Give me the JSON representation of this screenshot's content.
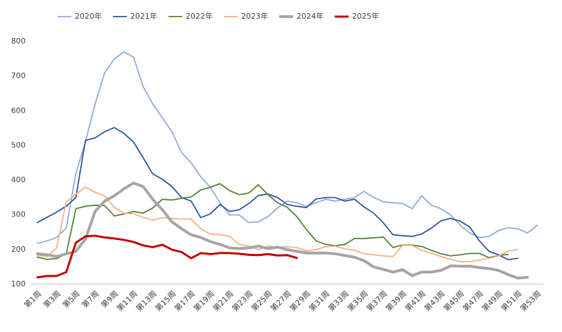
{
  "chart_data": {
    "type": "line",
    "categories": [
      "第1周",
      null,
      "第3周",
      null,
      "第5周",
      null,
      "第7周",
      null,
      "第9周",
      null,
      "第11周",
      null,
      "第13周",
      null,
      "第15周",
      null,
      "第17周",
      null,
      "第19周",
      null,
      "第21周",
      null,
      "第23周",
      null,
      "第25周",
      null,
      "第27周",
      null,
      "第29周",
      null,
      "第31周",
      null,
      "第33周",
      null,
      "第35周",
      null,
      "第37周",
      null,
      "第39周",
      null,
      "第41周",
      null,
      "第43周",
      null,
      "第45周",
      null,
      "第47周",
      null,
      "第49周",
      null,
      "第51周",
      null,
      "第53周"
    ],
    "ylim": [
      100,
      800
    ],
    "yticks": [
      100,
      200,
      300,
      400,
      500,
      600,
      700,
      800
    ],
    "series": [
      {
        "name": "2020年",
        "color": "#8faadc",
        "line_width": 1.8,
        "values": [
          218,
          225,
          235,
          262,
          420,
          510,
          620,
          710,
          750,
          770,
          755,
          670,
          620,
          580,
          540,
          480,
          450,
          410,
          380,
          335,
          300,
          300,
          278,
          280,
          295,
          320,
          340,
          335,
          325,
          335,
          345,
          340,
          345,
          350,
          368,
          350,
          338,
          335,
          333,
          318,
          355,
          328,
          318,
          300,
          270,
          248,
          235,
          238,
          255,
          263,
          260,
          248,
          270
        ]
      },
      {
        "name": "2021年",
        "color": "#2f5597",
        "line_width": 1.8,
        "values": [
          278,
          293,
          308,
          325,
          350,
          515,
          522,
          540,
          552,
          535,
          510,
          465,
          418,
          403,
          382,
          350,
          340,
          292,
          303,
          330,
          310,
          315,
          333,
          356,
          360,
          350,
          330,
          325,
          321,
          346,
          350,
          350,
          340,
          345,
          323,
          305,
          277,
          243,
          240,
          238,
          245,
          262,
          283,
          290,
          282,
          265,
          225,
          195,
          185,
          171,
          175,
          null,
          null
        ]
      },
      {
        "name": "2022年",
        "color": "#548235",
        "line_width": 1.8,
        "values": [
          178,
          172,
          174,
          188,
          318,
          325,
          328,
          327,
          297,
          303,
          310,
          305,
          320,
          345,
          343,
          348,
          352,
          372,
          380,
          390,
          370,
          358,
          363,
          387,
          358,
          335,
          322,
          295,
          258,
          225,
          215,
          211,
          215,
          232,
          232,
          234,
          236,
          206,
          213,
          213,
          209,
          198,
          188,
          182,
          185,
          189,
          189,
          177,
          183,
          186,
          null,
          null,
          null
        ]
      },
      {
        "name": "2023年",
        "color": "#f4b183",
        "line_width": 1.8,
        "values": [
          183,
          180,
          205,
          338,
          360,
          380,
          365,
          355,
          322,
          305,
          303,
          293,
          285,
          292,
          290,
          288,
          288,
          260,
          245,
          243,
          238,
          215,
          210,
          200,
          210,
          207,
          208,
          206,
          196,
          200,
          208,
          210,
          202,
          198,
          188,
          185,
          182,
          180,
          212,
          212,
          198,
          190,
          180,
          172,
          165,
          165,
          170,
          175,
          182,
          196,
          200,
          null,
          null
        ]
      },
      {
        "name": "2024年",
        "color": "#a5a5a5",
        "line_width": 4,
        "values": [
          188,
          185,
          180,
          188,
          195,
          230,
          310,
          340,
          355,
          375,
          392,
          382,
          345,
          315,
          280,
          260,
          243,
          235,
          223,
          215,
          205,
          203,
          205,
          210,
          203,
          207,
          200,
          195,
          190,
          190,
          190,
          188,
          183,
          178,
          168,
          150,
          143,
          135,
          142,
          125,
          135,
          135,
          140,
          153,
          152,
          152,
          148,
          145,
          140,
          128,
          118,
          120,
          null
        ]
      },
      {
        "name": "2025年",
        "color": "#c00000",
        "line_width": 3,
        "values": [
          120,
          124,
          124,
          135,
          220,
          238,
          240,
          235,
          232,
          228,
          222,
          212,
          207,
          214,
          200,
          193,
          175,
          190,
          187,
          190,
          190,
          188,
          185,
          184,
          187,
          183,
          184,
          176,
          null,
          null,
          null,
          null,
          null,
          null,
          null,
          null,
          null,
          null,
          null,
          null,
          null,
          null,
          null,
          null,
          null,
          null,
          null,
          null,
          null,
          null,
          null,
          null,
          null
        ]
      }
    ]
  }
}
